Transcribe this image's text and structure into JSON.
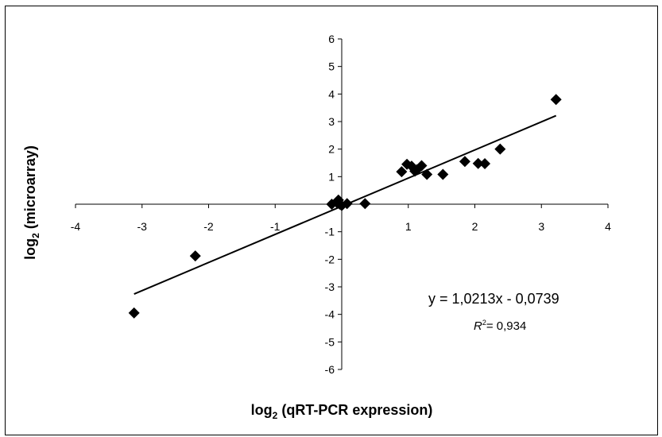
{
  "chart_data": {
    "type": "scatter",
    "xlabel_main": "log",
    "xlabel_sub": "2",
    "xlabel_rest": " (qRT-PCR expression)",
    "ylabel_main": "log",
    "ylabel_sub": "2",
    "ylabel_rest": " (microarray)",
    "xlim": [
      -4,
      4
    ],
    "ylim": [
      -6,
      6
    ],
    "xticks": [
      -4,
      -3,
      -2,
      -1,
      1,
      2,
      3,
      4
    ],
    "yticks": [
      -6,
      -5,
      -4,
      -3,
      -2,
      -1,
      1,
      2,
      3,
      4,
      5,
      6
    ],
    "grid": false,
    "marker": "diamond",
    "marker_color": "#000000",
    "points": [
      {
        "x": -3.12,
        "y": -3.95
      },
      {
        "x": -2.2,
        "y": -1.88
      },
      {
        "x": -0.15,
        "y": 0.0
      },
      {
        "x": -0.07,
        "y": 0.05
      },
      {
        "x": -0.05,
        "y": 0.15
      },
      {
        "x": -0.03,
        "y": 0.0
      },
      {
        "x": 0.0,
        "y": -0.05
      },
      {
        "x": 0.08,
        "y": 0.02
      },
      {
        "x": 0.35,
        "y": 0.02
      },
      {
        "x": 0.9,
        "y": 1.18
      },
      {
        "x": 0.98,
        "y": 1.45
      },
      {
        "x": 1.05,
        "y": 1.38
      },
      {
        "x": 1.1,
        "y": 1.2
      },
      {
        "x": 1.13,
        "y": 1.25
      },
      {
        "x": 1.2,
        "y": 1.4
      },
      {
        "x": 1.28,
        "y": 1.08
      },
      {
        "x": 1.52,
        "y": 1.08
      },
      {
        "x": 1.85,
        "y": 1.55
      },
      {
        "x": 2.05,
        "y": 1.48
      },
      {
        "x": 2.15,
        "y": 1.47
      },
      {
        "x": 2.38,
        "y": 2.0
      },
      {
        "x": 3.22,
        "y": 3.8
      }
    ],
    "trendline": {
      "slope": 1.0213,
      "intercept": -0.0739,
      "x_range": [
        -3.12,
        3.22
      ],
      "equation_label": "y = 1,0213x - 0,0739",
      "r2_symbol": "R",
      "r2_sup": "2",
      "r2_value": "= 0,934"
    }
  }
}
